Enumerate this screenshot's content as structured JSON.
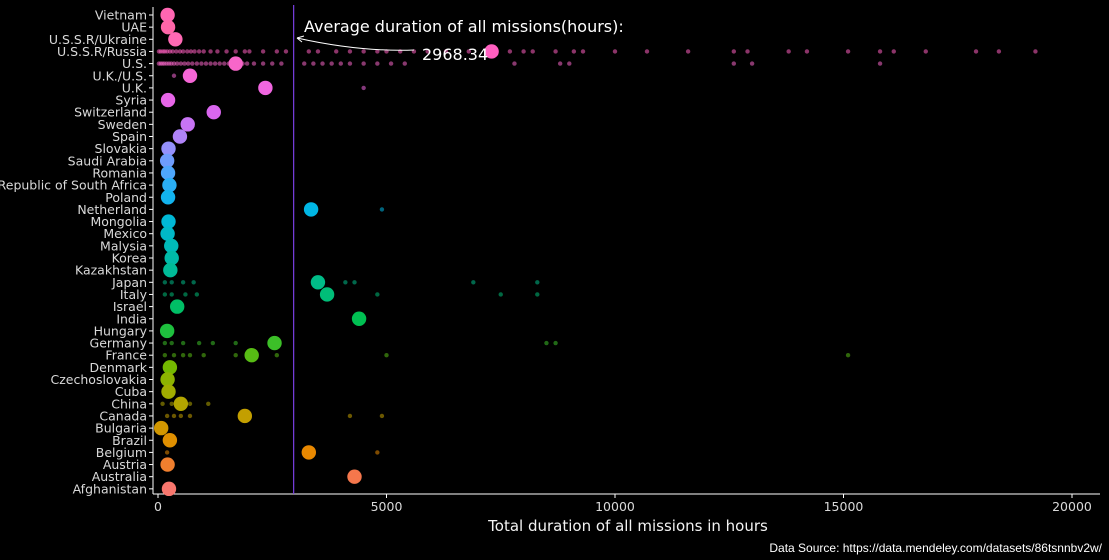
{
  "chart_data": {
    "type": "scatter",
    "title": "",
    "xlabel": "Total duration of all missions in hours",
    "ylabel": "",
    "xlim": [
      0,
      20000
    ],
    "xticks": [
      "0",
      "5000",
      "10000",
      "15000",
      "20000"
    ],
    "x_tick_values": [
      0,
      5000,
      10000,
      15000,
      20000
    ],
    "grid": false,
    "legend": "none",
    "background": "#000000",
    "average": {
      "value": 2968.34,
      "label": "Average duration of all missions(hours):",
      "value_label": "2968.34",
      "color": "#7b3fe4"
    },
    "source": "Data Source: https://data.mendeley.com/datasets/86tsnnbv2w/",
    "categories": [
      {
        "name": "Vietnam",
        "total": 210,
        "color": "#ff66b2",
        "missions": []
      },
      {
        "name": "UAE",
        "total": 220,
        "color": "#ff66a8",
        "missions": []
      },
      {
        "name": "U.S.S.R/Ukraine",
        "total": 380,
        "color": "#ff69b4",
        "missions": [
          280,
          340
        ]
      },
      {
        "name": "U.S.S.R/Russia",
        "total": 7300,
        "color": "#ff5fc0",
        "missions": [
          20,
          60,
          110,
          150,
          200,
          260,
          320,
          400,
          480,
          550,
          640,
          720,
          800,
          900,
          1000,
          1150,
          1300,
          1500,
          1700,
          1900,
          2000,
          2300,
          2600,
          2800,
          3300,
          3500,
          3900,
          4200,
          4500,
          4800,
          5000,
          5300,
          5600,
          5900,
          6300,
          6800,
          7200,
          7700,
          8000,
          8200,
          8700,
          9100,
          9300,
          10000,
          10700,
          11600,
          12600,
          12900,
          13800,
          14200,
          15100,
          15800,
          16100,
          16800,
          17900,
          18400,
          19200
        ]
      },
      {
        "name": "U.S.",
        "total": 1700,
        "color": "#f766c9",
        "missions": [
          20,
          60,
          100,
          140,
          190,
          240,
          290,
          350,
          420,
          500,
          580,
          660,
          750,
          850,
          950,
          1050,
          1150,
          1250,
          1350,
          1450,
          1550,
          1650,
          1750,
          1850,
          1950,
          2100,
          2300,
          2500,
          2700,
          3200,
          3400,
          3600,
          3800,
          4000,
          4200,
          4500,
          4800,
          5100,
          5400,
          7800,
          8800,
          9000,
          12600,
          13000,
          15800
        ]
      },
      {
        "name": "U.K./U.S.",
        "total": 700,
        "color": "#f566d6",
        "missions": [
          350
        ]
      },
      {
        "name": "U.K.",
        "total": 2350,
        "color": "#f066e0",
        "missions": [
          4500
        ]
      },
      {
        "name": "Syria",
        "total": 220,
        "color": "#e766e8",
        "missions": []
      },
      {
        "name": "Switzerland",
        "total": 1220,
        "color": "#d966ee",
        "missions": []
      },
      {
        "name": "Sweden",
        "total": 650,
        "color": "#c874f4",
        "missions": []
      },
      {
        "name": "Spain",
        "total": 480,
        "color": "#b083f8",
        "missions": []
      },
      {
        "name": "Slovakia",
        "total": 230,
        "color": "#9490fb",
        "missions": []
      },
      {
        "name": "Saudi Arabia",
        "total": 200,
        "color": "#6e9cfc",
        "missions": []
      },
      {
        "name": "Romania",
        "total": 220,
        "color": "#4ea6fb",
        "missions": []
      },
      {
        "name": "Republic of South Africa",
        "total": 250,
        "color": "#2aaef5",
        "missions": []
      },
      {
        "name": "Poland",
        "total": 220,
        "color": "#12b3ee",
        "missions": []
      },
      {
        "name": "Netherland",
        "total": 3350,
        "color": "#00b6e4",
        "missions": [
          4900
        ]
      },
      {
        "name": "Mongolia",
        "total": 230,
        "color": "#00b8d6",
        "missions": []
      },
      {
        "name": "Mexico",
        "total": 210,
        "color": "#00b9c8",
        "missions": []
      },
      {
        "name": "Malysia",
        "total": 290,
        "color": "#00bab8",
        "missions": []
      },
      {
        "name": "Korea",
        "total": 300,
        "color": "#00baa8",
        "missions": []
      },
      {
        "name": "Kazakhstan",
        "total": 270,
        "color": "#00bb98",
        "missions": []
      },
      {
        "name": "Japan",
        "total": 3500,
        "color": "#00bc88",
        "missions": [
          150,
          300,
          550,
          780,
          4100,
          4300,
          6900,
          8300
        ]
      },
      {
        "name": "Italy",
        "total": 3700,
        "color": "#00bd78",
        "missions": [
          150,
          300,
          600,
          850,
          4800,
          7500,
          8300
        ]
      },
      {
        "name": "Israel",
        "total": 420,
        "color": "#00bf66",
        "missions": []
      },
      {
        "name": "India",
        "total": 4400,
        "color": "#00c052",
        "missions": []
      },
      {
        "name": "Hungary",
        "total": 200,
        "color": "#1ec03e",
        "missions": []
      },
      {
        "name": "Germany",
        "total": 2550,
        "color": "#3cbf28",
        "missions": [
          150,
          300,
          550,
          900,
          1200,
          1700,
          8500,
          8700
        ]
      },
      {
        "name": "France",
        "total": 2050,
        "color": "#57bc14",
        "missions": [
          150,
          350,
          550,
          700,
          1000,
          1700,
          2600,
          5000,
          15100
        ]
      },
      {
        "name": "Denmark",
        "total": 260,
        "color": "#74b800",
        "missions": []
      },
      {
        "name": "Czechoslovakia",
        "total": 210,
        "color": "#8db300",
        "missions": []
      },
      {
        "name": "Cuba",
        "total": 230,
        "color": "#a1ad00",
        "missions": []
      },
      {
        "name": "China",
        "total": 500,
        "color": "#b3a600",
        "missions": [
          100,
          300,
          700,
          1100
        ]
      },
      {
        "name": "Canada",
        "total": 1900,
        "color": "#c39f00",
        "missions": [
          200,
          350,
          500,
          700,
          4200,
          4900
        ]
      },
      {
        "name": "Bulgaria",
        "total": 70,
        "color": "#d29700",
        "missions": []
      },
      {
        "name": "Brazil",
        "total": 260,
        "color": "#df8f00",
        "missions": []
      },
      {
        "name": "Belgium",
        "total": 3300,
        "color": "#e88800",
        "missions": [
          200,
          4800
        ]
      },
      {
        "name": "Austria",
        "total": 210,
        "color": "#f07f2e",
        "missions": []
      },
      {
        "name": "Australia",
        "total": 4300,
        "color": "#f5774c",
        "missions": []
      },
      {
        "name": "Afghanistan",
        "total": 240,
        "color": "#f8766d",
        "missions": []
      }
    ]
  }
}
